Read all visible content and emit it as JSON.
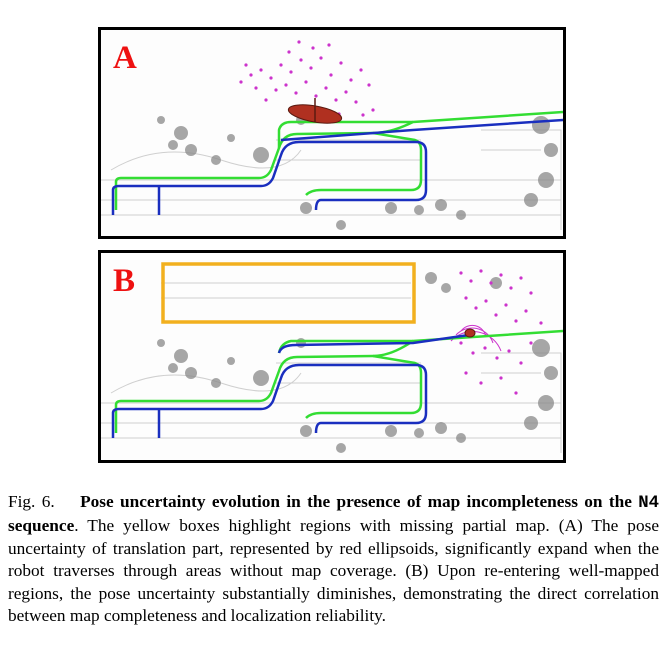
{
  "figure": {
    "panels": [
      {
        "label": "A"
      },
      {
        "label": "B"
      }
    ],
    "colors": {
      "path_green": "#33dd33",
      "path_blue": "#1a2fbf",
      "ellipsoid": "#b03020",
      "scan_points": "#cc33cc",
      "missing_map_box": "#f2b01e",
      "panel_label": "#ee1111"
    },
    "caption": {
      "prefix": "Fig. 6.",
      "bold": "Pose uncertainty evolution in the presence of map incompleteness on the ",
      "sequence": "N4",
      "bold_tail": " sequence",
      "body": ". The yellow boxes highlight regions with missing partial map. (A) The pose uncertainty of translation part, represented by red ellipsoids, significantly expand when the robot traverses through areas without map coverage. (B) Upon re-entering well-mapped regions, the pose uncertainty substantially diminishes, demonstrating the direct correlation between map completeness and localization reliability."
    }
  }
}
